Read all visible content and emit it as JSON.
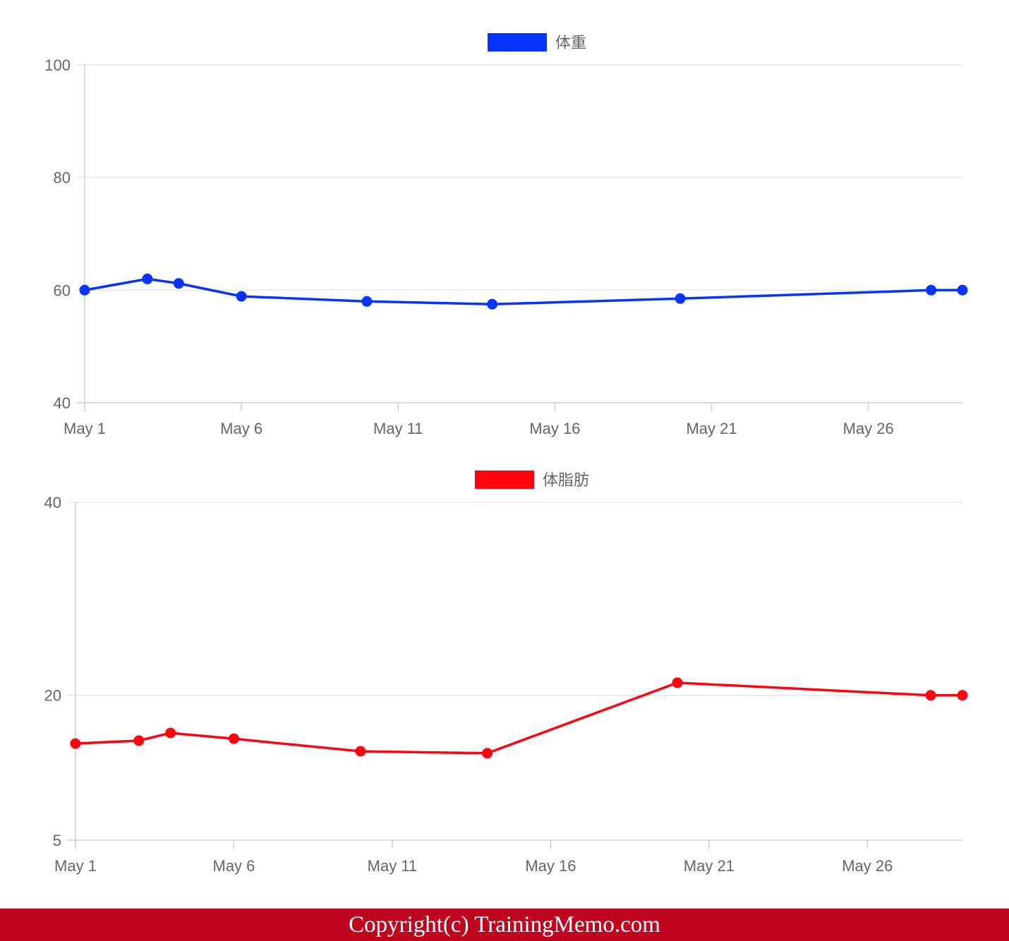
{
  "chart_data": [
    {
      "type": "line",
      "legend_position": "top-center",
      "grid": true,
      "x_tick_labels": [
        "May 1",
        "May 6",
        "May 11",
        "May 16",
        "May 21",
        "May 26"
      ],
      "x_ticks": [
        "2023-05-01",
        "2023-05-06",
        "2023-05-11",
        "2023-05-16",
        "2023-05-21",
        "2023-05-26"
      ],
      "xlim": [
        "2023-05-01",
        "2023-05-29"
      ],
      "ylim": [
        40,
        100
      ],
      "y_ticks": [
        40,
        60,
        80,
        100
      ],
      "y_scale": "linear",
      "series": [
        {
          "name": "体重",
          "color": "#0633ff",
          "points": [
            {
              "x": "2023-05-01",
              "y": 60.0
            },
            {
              "x": "2023-05-03",
              "y": 62.0
            },
            {
              "x": "2023-05-04",
              "y": 61.2
            },
            {
              "x": "2023-05-06",
              "y": 58.9
            },
            {
              "x": "2023-05-10",
              "y": 58.0
            },
            {
              "x": "2023-05-14",
              "y": 57.5
            },
            {
              "x": "2023-05-20",
              "y": 58.5
            },
            {
              "x": "2023-05-28",
              "y": 60.0
            },
            {
              "x": "2023-05-29",
              "y": 60.0
            }
          ]
        }
      ]
    },
    {
      "type": "line",
      "legend_position": "top-center",
      "grid": true,
      "x_tick_labels": [
        "May 1",
        "May 6",
        "May 11",
        "May 16",
        "May 21",
        "May 26"
      ],
      "x_ticks": [
        "2023-05-01",
        "2023-05-06",
        "2023-05-11",
        "2023-05-16",
        "2023-05-21",
        "2023-05-26"
      ],
      "xlim": [
        "2023-05-01",
        "2023-05-29"
      ],
      "ylim": [
        5,
        40
      ],
      "y_ticks": [
        5,
        20,
        40
      ],
      "y_scale": "linear",
      "series": [
        {
          "name": "体脂肪",
          "color": "#ff0410",
          "points": [
            {
              "x": "2023-05-01",
              "y": 15.0
            },
            {
              "x": "2023-05-03",
              "y": 15.3
            },
            {
              "x": "2023-05-04",
              "y": 16.1
            },
            {
              "x": "2023-05-06",
              "y": 15.5
            },
            {
              "x": "2023-05-10",
              "y": 14.2
            },
            {
              "x": "2023-05-14",
              "y": 14.0
            },
            {
              "x": "2023-05-20",
              "y": 21.3
            },
            {
              "x": "2023-05-28",
              "y": 20.0
            },
            {
              "x": "2023-05-29",
              "y": 20.0
            }
          ]
        }
      ]
    }
  ],
  "footer": {
    "copyright": "Copyright(c) TrainingMemo.com"
  }
}
